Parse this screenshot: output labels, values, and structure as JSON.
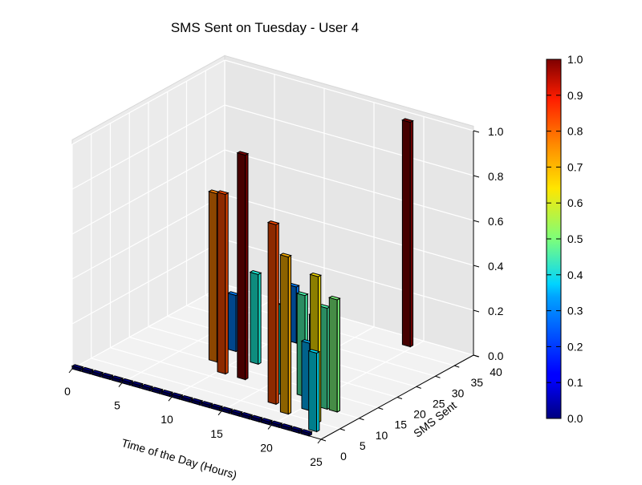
{
  "chart_data": {
    "type": "bar3d",
    "title": "SMS Sent on Tuesday - User 4",
    "xlabel": "Time of the Day (Hours)",
    "ylabel": "SMS Sent",
    "zlabel": "",
    "x_ticks": [
      "0",
      "5",
      "10",
      "15",
      "20",
      "25"
    ],
    "y_ticks": [
      "0",
      "5",
      "10",
      "15",
      "20",
      "25",
      "30",
      "35",
      "40"
    ],
    "z_ticks": [
      "0.0",
      "0.2",
      "0.4",
      "0.6",
      "0.8",
      "1.0"
    ],
    "colorbar_ticks": [
      "0.0",
      "0.1",
      "0.2",
      "0.3",
      "0.4",
      "0.5",
      "0.6",
      "0.7",
      "0.8",
      "0.9",
      "1.0"
    ],
    "xlim": [
      0,
      25
    ],
    "ylim": [
      0,
      40
    ],
    "zlim": [
      0,
      1.0
    ],
    "colormap": "jet",
    "grid": true,
    "bars": [
      {
        "hour": 0,
        "sms": 0,
        "value": 0.0
      },
      {
        "hour": 1,
        "sms": 0,
        "value": 0.0
      },
      {
        "hour": 2,
        "sms": 0,
        "value": 0.0
      },
      {
        "hour": 3,
        "sms": 0,
        "value": 0.0
      },
      {
        "hour": 4,
        "sms": 0,
        "value": 0.0
      },
      {
        "hour": 5,
        "sms": 0,
        "value": 0.0
      },
      {
        "hour": 6,
        "sms": 0,
        "value": 0.0
      },
      {
        "hour": 7,
        "sms": 0,
        "value": 0.0
      },
      {
        "hour": 8,
        "sms": 0,
        "value": 0.0
      },
      {
        "hour": 9,
        "sms": 0,
        "value": 0.0
      },
      {
        "hour": 10,
        "sms": 0,
        "value": 0.0
      },
      {
        "hour": 11,
        "sms": 0,
        "value": 0.0
      },
      {
        "hour": 12,
        "sms": 0,
        "value": 0.0
      },
      {
        "hour": 13,
        "sms": 0,
        "value": 0.0
      },
      {
        "hour": 14,
        "sms": 0,
        "value": 0.0
      },
      {
        "hour": 15,
        "sms": 0,
        "value": 0.0
      },
      {
        "hour": 16,
        "sms": 0,
        "value": 0.0
      },
      {
        "hour": 17,
        "sms": 0,
        "value": 0.0
      },
      {
        "hour": 18,
        "sms": 0,
        "value": 0.0
      },
      {
        "hour": 19,
        "sms": 0,
        "value": 0.0
      },
      {
        "hour": 20,
        "sms": 0,
        "value": 0.0
      },
      {
        "hour": 21,
        "sms": 0,
        "value": 0.0
      },
      {
        "hour": 22,
        "sms": 0,
        "value": 0.0
      },
      {
        "hour": 23,
        "sms": 0,
        "value": 0.0
      },
      {
        "hour": 8,
        "sms": 20,
        "value": 0.25
      },
      {
        "hour": 8,
        "sms": 15,
        "value": 0.75
      },
      {
        "hour": 10,
        "sms": 12,
        "value": 0.8
      },
      {
        "hour": 11,
        "sms": 28,
        "value": 0.25
      },
      {
        "hour": 11,
        "sms": 18,
        "value": 0.4
      },
      {
        "hour": 12,
        "sms": 12,
        "value": 1.0
      },
      {
        "hour": 16,
        "sms": 10,
        "value": 0.4
      },
      {
        "hour": 17,
        "sms": 7,
        "value": 0.8
      },
      {
        "hour": 18,
        "sms": 12,
        "value": 0.45
      },
      {
        "hour": 19,
        "sms": 5,
        "value": 0.7
      },
      {
        "hour": 20,
        "sms": 10,
        "value": 0.4
      },
      {
        "hour": 20,
        "sms": 8,
        "value": 0.3
      },
      {
        "hour": 21,
        "sms": 10,
        "value": 0.45
      },
      {
        "hour": 22,
        "sms": 10,
        "value": 0.5
      },
      {
        "hour": 22,
        "sms": 5,
        "value": 0.65
      },
      {
        "hour": 23,
        "sms": 2,
        "value": 0.35
      },
      {
        "hour": 19,
        "sms": 37,
        "value": 1.0
      }
    ]
  }
}
